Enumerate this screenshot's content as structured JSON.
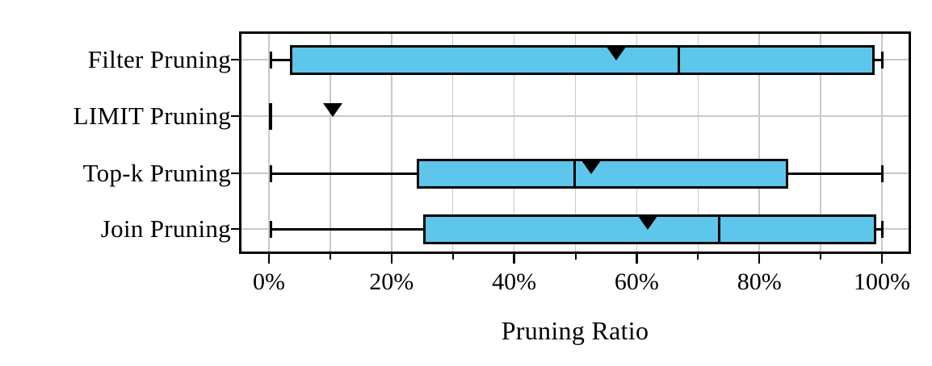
{
  "chart_data": {
    "type": "boxplot",
    "orientation": "horizontal",
    "title": "",
    "xlabel": "Pruning Ratio",
    "ylabel": "",
    "x_unit": "%",
    "xlim": [
      -4.9,
      104.7
    ],
    "x_major_ticks": [
      {
        "value": 0,
        "label": "0%"
      },
      {
        "value": 20,
        "label": "20%"
      },
      {
        "value": 40,
        "label": "40%"
      },
      {
        "value": 60,
        "label": "60%"
      },
      {
        "value": 80,
        "label": "80%"
      },
      {
        "value": 100,
        "label": "100%"
      }
    ],
    "x_minor_ticks": [
      10,
      30,
      50,
      70,
      90
    ],
    "grid": {
      "vertical_at": [
        0,
        10,
        20,
        30,
        40,
        50,
        60,
        70,
        80,
        90,
        100
      ],
      "horizontal": "at-each-category-center",
      "color": "#c9c9c9"
    },
    "legend": "none",
    "mean_marker": "filled-down-triangle",
    "categories": [
      "Filter Pruning",
      "LIMIT Pruning",
      "Top-k Pruning",
      "Join Pruning"
    ],
    "series": [
      {
        "label": "Filter Pruning",
        "whisker_low": 0.3,
        "q1": 3.4,
        "median": 66.8,
        "q3": 98.8,
        "whisker_high": 100,
        "mean": 56.6
      },
      {
        "label": "LIMIT Pruning",
        "whisker_low": 0.2,
        "q1": 0.2,
        "median": 0.2,
        "q3": 0.2,
        "whisker_high": 0.2,
        "mean": 10.4
      },
      {
        "label": "Top-k Pruning",
        "whisker_low": 0.3,
        "q1": 24.1,
        "median": 49.9,
        "q3": 84.7,
        "whisker_high": 100,
        "mean": 52.6
      },
      {
        "label": "Join Pruning",
        "whisker_low": 0.3,
        "q1": 25.2,
        "median": 73.4,
        "q3": 99.1,
        "whisker_high": 100,
        "mean": 61.8
      }
    ],
    "colors": {
      "box_fill": "#5ec6ea",
      "box_edge": "#000000",
      "whisker": "#000000",
      "median": "#000000",
      "mean_marker": "#000000",
      "grid": "#c9c9c9",
      "axis": "#000000",
      "background": "#ffffff",
      "text": "#000000"
    }
  }
}
